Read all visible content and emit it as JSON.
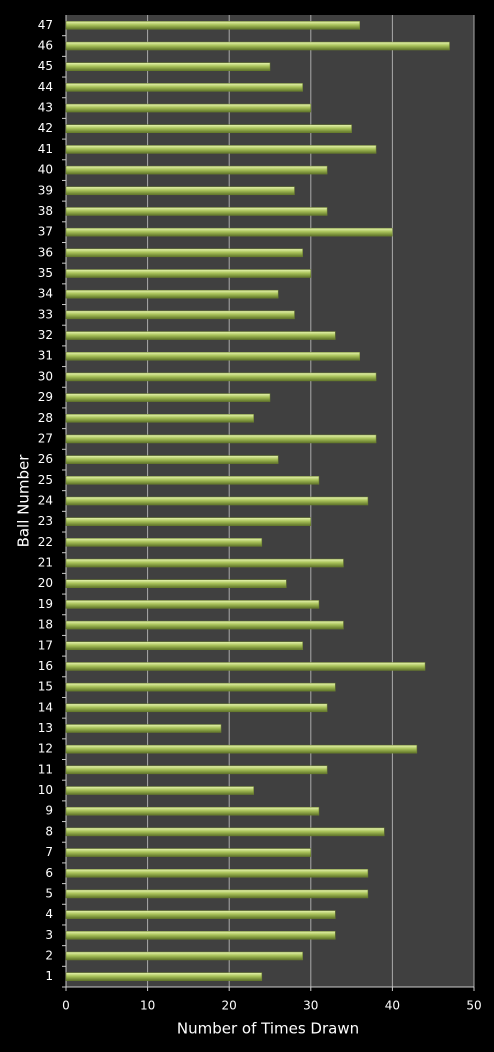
{
  "chart_data": {
    "type": "barh",
    "x_label": "Number of Times Drawn",
    "y_label": "Ball Number",
    "categories": [
      "1",
      "2",
      "3",
      "4",
      "5",
      "6",
      "7",
      "8",
      "9",
      "10",
      "11",
      "12",
      "13",
      "14",
      "15",
      "16",
      "17",
      "18",
      "19",
      "20",
      "21",
      "22",
      "23",
      "24",
      "25",
      "26",
      "27",
      "28",
      "29",
      "30",
      "31",
      "32",
      "33",
      "34",
      "35",
      "36",
      "37",
      "38",
      "39",
      "40",
      "41",
      "42",
      "43",
      "44",
      "45",
      "46",
      "47"
    ],
    "values": [
      24,
      29,
      33,
      33,
      37,
      37,
      30,
      39,
      31,
      23,
      32,
      43,
      19,
      32,
      33,
      44,
      29,
      34,
      31,
      27,
      34,
      24,
      30,
      37,
      31,
      26,
      38,
      23,
      25,
      38,
      36,
      33,
      28,
      26,
      30,
      29,
      40,
      32,
      28,
      32,
      38,
      35,
      30,
      29,
      25,
      47,
      36
    ],
    "color": "#a9c25a",
    "xlim": [
      0,
      50
    ],
    "xticks": [
      0,
      10,
      20,
      30,
      40,
      50
    ],
    "grid": true
  }
}
